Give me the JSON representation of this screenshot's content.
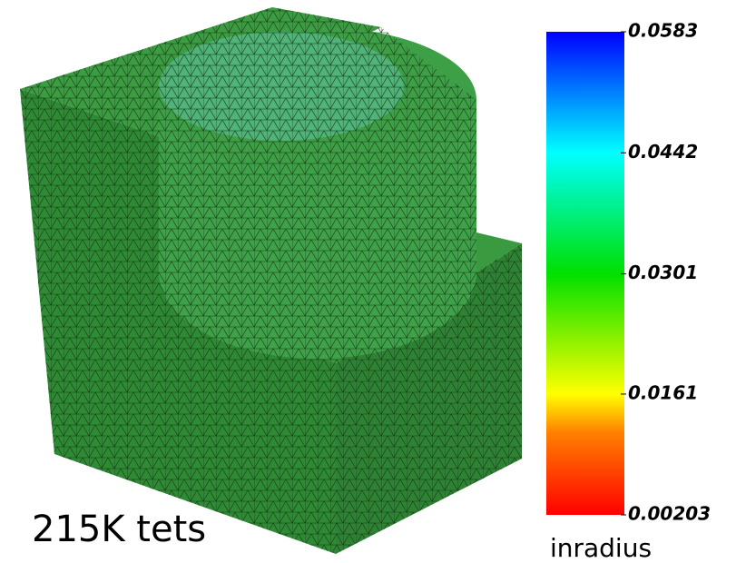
{
  "caption": "215K tets",
  "colorbar": {
    "label": "inradius",
    "range": [
      0.00203,
      0.0583
    ],
    "ticks": [
      0.0583,
      0.0442,
      0.0301,
      0.0161,
      0.00203
    ]
  }
}
